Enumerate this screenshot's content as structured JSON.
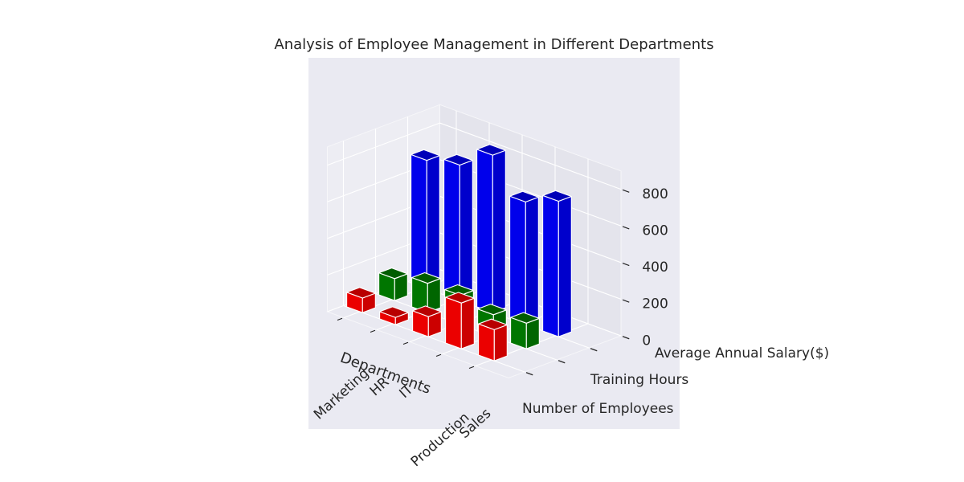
{
  "chart_data": {
    "type": "bar3d",
    "title": "Analysis of Employee Management in Different Departments",
    "xlabel": "Departments",
    "ylabel": "",
    "zlabel": "",
    "categories": [
      "Marketing",
      "HR",
      "IT",
      "Production",
      "Sales"
    ],
    "metrics": [
      "Number of Employees",
      "Training Hours",
      "Average Annual Salary($)"
    ],
    "series": [
      {
        "name": "Number of Employees",
        "color": "#ff0000",
        "values": [
          80,
          40,
          110,
          250,
          170
        ]
      },
      {
        "name": "Training Hours",
        "color": "#008000",
        "values": [
          120,
          160,
          160,
          120,
          140
        ]
      },
      {
        "name": "Average Annual Salary($)",
        "color": "#0000ff",
        "values": [
          700,
          740,
          860,
          670,
          740
        ]
      }
    ],
    "zticks": [
      0,
      200,
      400,
      600,
      800
    ],
    "zlim": [
      0,
      900
    ],
    "grid": true,
    "legend": "none"
  }
}
